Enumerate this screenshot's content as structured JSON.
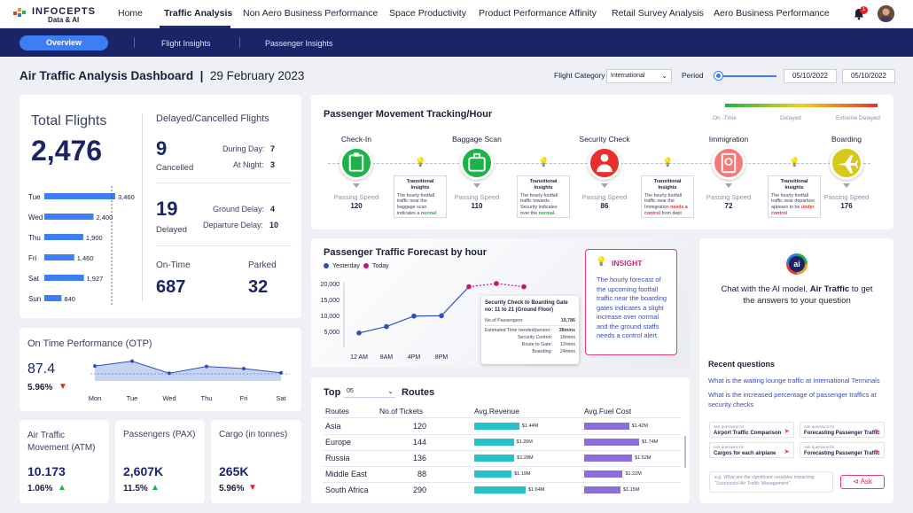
{
  "brand": {
    "name": "INFOCEPTS",
    "sub": "Data & AI"
  },
  "nav": {
    "items": [
      {
        "label": "Home"
      },
      {
        "label": "Traffic Analysis"
      },
      {
        "label": "Non Aero Business Performance"
      },
      {
        "label": "Space Productivity"
      },
      {
        "label": "Product Performance Affinity"
      },
      {
        "label": "Retail Survey Analysis"
      },
      {
        "label": "Aero Business Performance"
      }
    ],
    "active": "Traffic Analysis",
    "notifications": "1"
  },
  "subnav": {
    "items": [
      {
        "label": "Overview"
      },
      {
        "label": "Flight Insights"
      },
      {
        "label": "Passenger Insights"
      }
    ]
  },
  "header": {
    "title": "Air Traffic Analysis Dashboard",
    "date": "29 February 2023",
    "flight_category_label": "Flight Category",
    "flight_category_value": "International",
    "period_label": "Period",
    "period_from": "05/10/2022",
    "period_to": "05/10/2022"
  },
  "total_flights": {
    "title": "Total Flights",
    "value": "2,476",
    "chart_data": {
      "type": "bar",
      "categories": [
        "Tue",
        "Wed",
        "Thu",
        "Fri",
        "Sat",
        "Sun"
      ],
      "values": [
        3460,
        2400,
        1900,
        1460,
        1927,
        840
      ],
      "labels": [
        "3,460",
        "2,400",
        "1,900",
        "1,460",
        "1,927",
        "840"
      ]
    }
  },
  "delayed": {
    "title": "Delayed/Cancelled Flights",
    "cancelled_value": "9",
    "cancelled_label": "Cancelled",
    "during_day_label": "During Day:",
    "during_day_value": "7",
    "at_night_label": "At Night:",
    "at_night_value": "3",
    "delayed_value": "19",
    "delayed_label": "Delayed",
    "ground_delay_label": "Ground Delay:",
    "ground_delay_value": "4",
    "departure_delay_label": "Departure Delay:",
    "departure_delay_value": "10",
    "ontime_label": "On-Time",
    "ontime_value": "687",
    "parked_label": "Parked",
    "parked_value": "32"
  },
  "otp": {
    "title": "On Time Performance (OTP)",
    "value": "87.4",
    "change": "5.96%",
    "chart_data": {
      "type": "area",
      "categories": [
        "Mon",
        "Tue",
        "Wed",
        "Thu",
        "Fri",
        "Sat"
      ],
      "values": [
        62,
        85,
        28,
        60,
        50,
        30
      ]
    }
  },
  "kpis": [
    {
      "title": "Air Traffic Movement (ATM)",
      "value": "10.173",
      "change": "1.06%",
      "trend": "up"
    },
    {
      "title": "Passengers (PAX)",
      "value": "2,607K",
      "change": "11.5%",
      "trend": "up"
    },
    {
      "title": "Cargo (in tonnes)",
      "value": "265K",
      "change": "5.96%",
      "trend": "down"
    }
  ],
  "movement": {
    "title": "Passenger Movement Tracking/Hour",
    "legend": [
      "On -Time",
      "Delayed",
      "Extreme Delayed"
    ],
    "speed_label": "Passing Speed",
    "stages": [
      {
        "name": "Check-In",
        "speed": "120",
        "color": "#1db34a",
        "icon": "check-in-icon"
      },
      {
        "name": "Baggage Scan",
        "speed": "110",
        "color": "#1db34a",
        "icon": "baggage-icon"
      },
      {
        "name": "Security Check",
        "speed": "86",
        "color": "#e8312f",
        "icon": "security-icon"
      },
      {
        "name": "Immigration",
        "speed": "72",
        "color": "#f47a7a",
        "icon": "passport-icon"
      },
      {
        "name": "Boarding",
        "speed": "176",
        "color": "#d8c81c",
        "icon": "plane-icon"
      }
    ],
    "insight_title": "Transitional Insights",
    "insights": [
      {
        "pre": "The hourly footfall traffic near the baggage scan indicates a",
        "status": "normal",
        "post": "",
        "color": "#1db34a"
      },
      {
        "pre": "The hourly footfall traffic towards Security indicates over the",
        "status": "normal.",
        "post": "",
        "color": "#1db34a"
      },
      {
        "pre": "The hourly footfall traffic near the Immigration",
        "status": "needs a control",
        "post": "from dept",
        "color": "#e8312f"
      },
      {
        "pre": "The hourly footfall traffic near departure appears to be",
        "status": "under control",
        "post": "",
        "color": "#e8312f"
      }
    ]
  },
  "forecast": {
    "title": "Passenger Traffic Forecast by hour",
    "legend": [
      {
        "name": "Yesterday",
        "color": "#2f4fb5"
      },
      {
        "name": "Today",
        "color": "#c8127a"
      }
    ],
    "chart_data": {
      "type": "line",
      "x": [
        "12 AM",
        "8AM",
        "4PM",
        "8PM"
      ],
      "yticks": [
        "20,000",
        "15,000",
        "10,000",
        "5,000"
      ],
      "series": [
        {
          "name": "Yesterday",
          "x": [
            0,
            1,
            2,
            3,
            4
          ],
          "y": [
            4500,
            6500,
            9800,
            9900,
            19000
          ]
        },
        {
          "name": "Today",
          "x": [
            4,
            5,
            6
          ],
          "y": [
            19000,
            20000,
            19000
          ]
        }
      ],
      "ylim": [
        0,
        20000
      ]
    },
    "tooltip": {
      "title": "Security Check to Boarding Gate no: 11 to 21 (Ground Floor)",
      "rows": [
        {
          "label": "No.of Passengers:",
          "value": "19,786"
        },
        {
          "label": "Estimated Time needed/person:",
          "value": "38mins"
        },
        {
          "label": "Security Control:",
          "value": "18mins"
        },
        {
          "label": "Route to Gate:",
          "value": "12mins"
        },
        {
          "label": "Boarding:",
          "value": "24mins"
        }
      ]
    },
    "insight_title": "INSIGHT",
    "insight_text": "The hourly forecast of the upcoming footfall traffic near the boarding gates indicates a slight increase over normal and the ground staffs needs a control alert."
  },
  "routes": {
    "top_label": "Top",
    "top_value": "05",
    "title": "Routes",
    "columns": [
      "Routes",
      "No.of Tickets",
      "Avg.Revenue",
      "Avg.Fuel Cost"
    ],
    "chart_data": {
      "type": "table",
      "rows": [
        {
          "route": "Asia",
          "tickets": "120",
          "revenue": 1.44,
          "revenue_label": "$1.44M",
          "fuel": 1.42,
          "fuel_label": "$1.42M"
        },
        {
          "route": "Europe",
          "tickets": "144",
          "revenue": 1.26,
          "revenue_label": "$1.26M",
          "fuel": 1.74,
          "fuel_label": "$1.74M"
        },
        {
          "route": "Russia",
          "tickets": "136",
          "revenue": 1.28,
          "revenue_label": "$1.28M",
          "fuel": 1.52,
          "fuel_label": "$1.52M"
        },
        {
          "route": "Middle East",
          "tickets": "88",
          "revenue": 1.19,
          "revenue_label": "$1.19M",
          "fuel": 1.22,
          "fuel_label": "$1.22M"
        },
        {
          "route": "South Africa",
          "tickets": "290",
          "revenue": 1.64,
          "revenue_label": "$1.64M",
          "fuel": 1.15,
          "fuel_label": "$1.15M"
        }
      ]
    }
  },
  "ai": {
    "logo_text": "ai",
    "prompt_pre": "Chat with the AI model,",
    "prompt_bold": "Air Traffic",
    "prompt_post": "to get the answers to your question",
    "recent_title": "Recent questions",
    "recent": [
      "What is the waiting lounge traffic at International Terminals",
      "What is the increased percentage of passenger traffics at security checks"
    ],
    "suggestions": [
      {
        "small": "Ask questions for",
        "main": "Airport Traffic Comparison"
      },
      {
        "small": "Ask questions for",
        "main": "Forecasting Passenger Traffic"
      },
      {
        "small": "Ask questions for",
        "main": "Cargos for each airplane"
      },
      {
        "small": "Ask questions for",
        "main": "Forecasting Passenger Traffic"
      }
    ],
    "input_placeholder": "e.g. What are the significant variables impacting \"Successful Air Traffic Management\"",
    "ask_label": "Ask"
  }
}
